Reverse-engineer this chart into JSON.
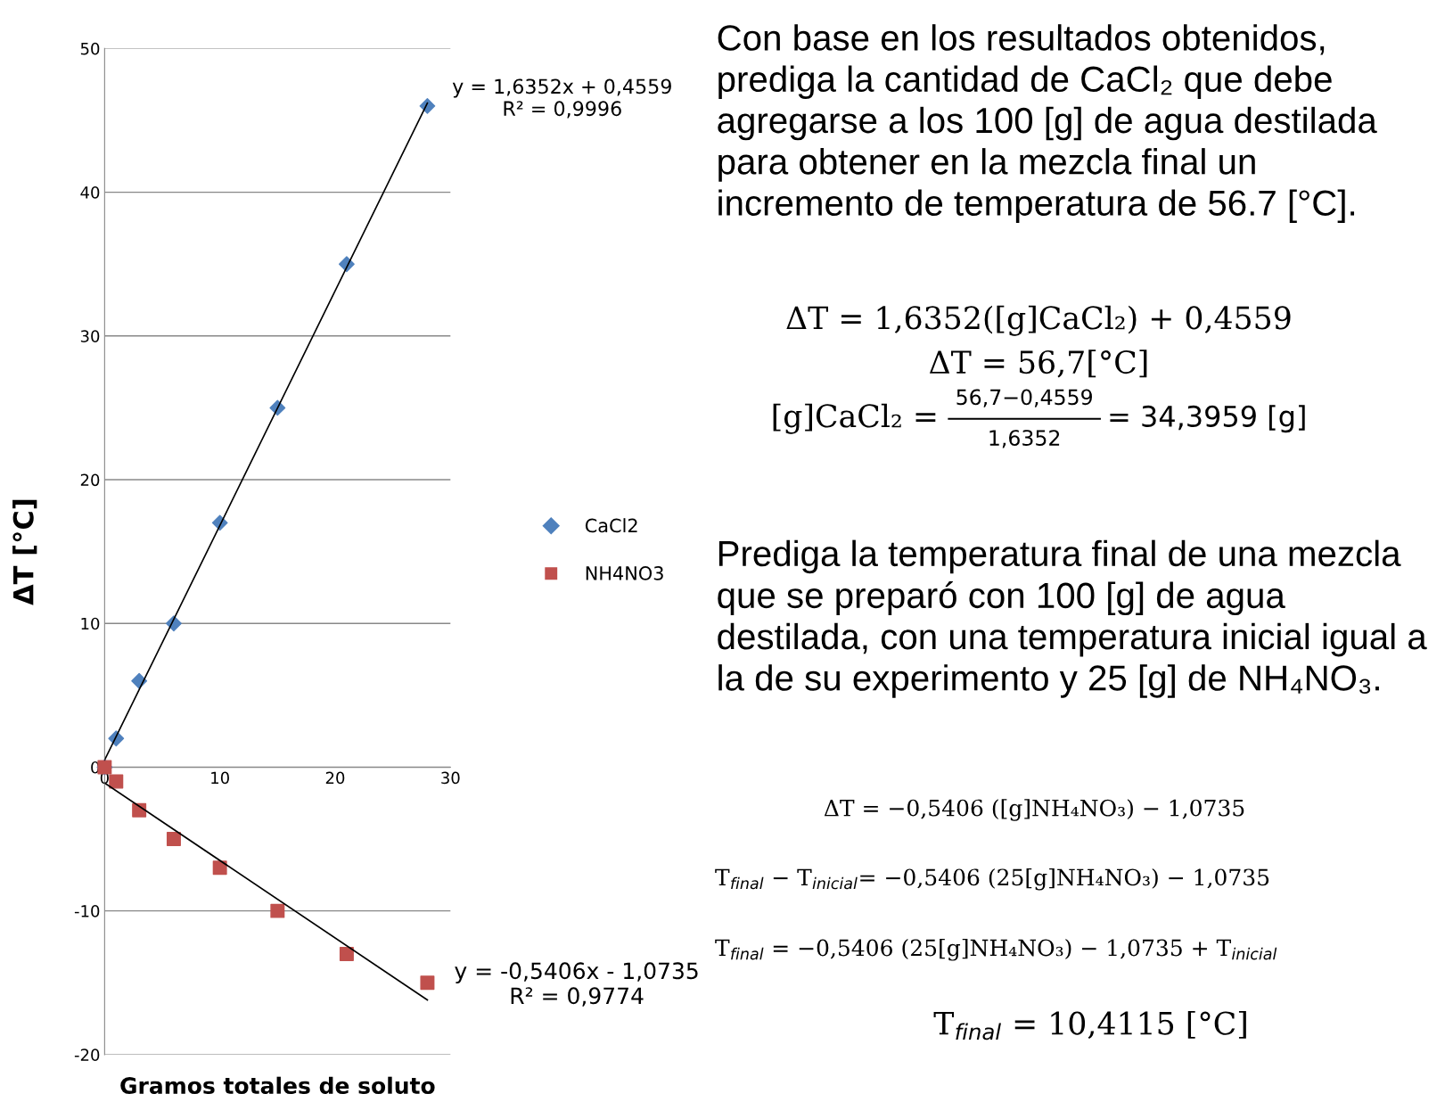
{
  "chart_data": {
    "type": "scatter",
    "xlabel": "Gramos totales de soluto",
    "ylabel": "ΔT [°C]",
    "xlim": [
      0,
      30
    ],
    "xticks": [
      0,
      10,
      20,
      30
    ],
    "ylim": [
      -20,
      50
    ],
    "yticks": [
      -20,
      -10,
      0,
      10,
      20,
      30,
      40,
      50
    ],
    "grid": "y",
    "legend": "right",
    "series": [
      {
        "name": "CaCl2",
        "color": "#4f81bd",
        "marker": "diamond",
        "x": [
          0,
          1,
          3,
          6,
          10,
          15,
          21,
          28
        ],
        "values": [
          0,
          2,
          6,
          10,
          17,
          25,
          35,
          46
        ]
      },
      {
        "name": "NH4NO3",
        "color": "#c0504d",
        "marker": "square",
        "x": [
          0,
          1,
          3,
          6,
          10,
          15,
          21,
          28
        ],
        "values": [
          0,
          -1,
          -3,
          -5,
          -7,
          -10,
          -13,
          -15
        ]
      },
      {
        "type": "line",
        "color": "#000000",
        "x": [
          0,
          28
        ],
        "values": [
          0.5,
          46.2
        ]
      },
      {
        "type": "line",
        "color": "#000000",
        "x": [
          0,
          28
        ],
        "values": [
          -1.1,
          -16.2
        ]
      }
    ],
    "annotations": [
      "y = 1,6352x + 0,4559\nR² = 0,9996",
      "y = -0,5406x - 1,0735\nR² = 0,9774",
      "Con base en los resultados obtenidos,\nprediga la cantidad de CaCl₂ que debe\nagregarse a los 100 [g] de agua destilada\npara obtener en la mezcla final un\nincremento de temperatura de 56.7 [°C].",
      "ΔT = 1,6352([g]CaCl₂) + 0,4559",
      "ΔT = 56,7[°C]",
      "[g]CaCl₂ =",
      "56,7−0,4559",
      "1,6352",
      "= 34,3959 [g]",
      "Prediga la temperatura final de una mezcla\nque se preparó con 100 [g] de agua\ndestilada, con una temperatura inicial igual a\nla de su experimento y 25 [g] de NH₄NO₃.",
      "ΔT = −0,5406 ([g]NH₄NO₃) − 1,0735",
      "T$_{final}$ − T$_{inicial}$= −0,5406 (25[g]NH₄NO₃) − 1,0735",
      "T$_{final}$ = −0,5406 (25[g]NH₄NO₃) − 1,0735 + T$_{inicial}$",
      "T$_{final}$ = 10,4115 [°C]"
    ]
  }
}
